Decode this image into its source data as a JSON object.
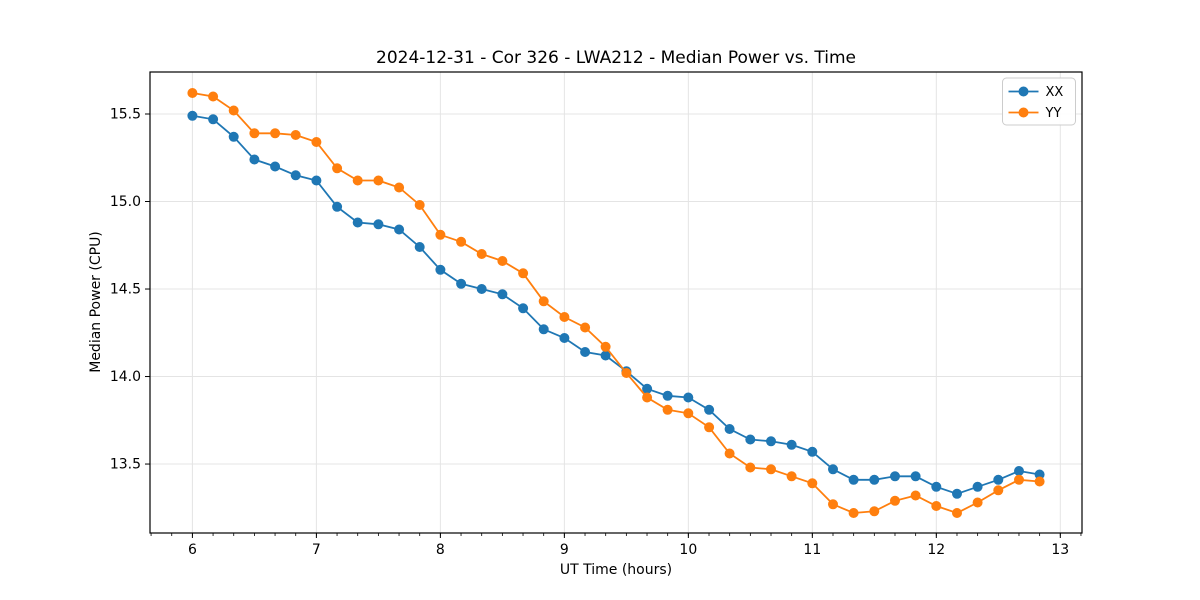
{
  "figure": {
    "background_color": "#ffffff",
    "plot_background_color": "#ffffff",
    "spine_color": "#000000",
    "grid_color": "#e4e4e4"
  },
  "chart_data": {
    "type": "line",
    "title": "2024-12-31 - Cor 326 - LWA212 - Median Power vs. Time",
    "xlabel": "UT Time (hours)",
    "ylabel": "Median Power (CPU)",
    "xlim": [
      5.658,
      13.175
    ],
    "ylim": [
      13.106,
      15.74
    ],
    "xticks": [
      6,
      7,
      8,
      9,
      10,
      11,
      12,
      13
    ],
    "xtick_labels": [
      "6",
      "7",
      "8",
      "9",
      "10",
      "11",
      "12",
      "13"
    ],
    "yticks": [
      13.5,
      14.0,
      14.5,
      15.0,
      15.5
    ],
    "ytick_labels": [
      "13.5",
      "14.0",
      "14.5",
      "15.0",
      "15.5"
    ],
    "x_minor_step": 0.1666667,
    "grid": true,
    "legend": {
      "location": "upper right"
    },
    "x": [
      6.0,
      6.167,
      6.333,
      6.5,
      6.667,
      6.833,
      7.0,
      7.167,
      7.333,
      7.5,
      7.667,
      7.833,
      8.0,
      8.167,
      8.333,
      8.5,
      8.667,
      8.833,
      9.0,
      9.167,
      9.333,
      9.5,
      9.667,
      9.833,
      10.0,
      10.167,
      10.333,
      10.5,
      10.667,
      10.833,
      11.0,
      11.167,
      11.333,
      11.5,
      11.667,
      11.833,
      12.0,
      12.167,
      12.333,
      12.5,
      12.667,
      12.833
    ],
    "series": [
      {
        "name": "XX",
        "color": "#1f77b4",
        "marker": "circle",
        "values": [
          15.49,
          15.47,
          15.37,
          15.24,
          15.2,
          15.15,
          15.12,
          14.97,
          14.88,
          14.87,
          14.84,
          14.74,
          14.61,
          14.53,
          14.5,
          14.47,
          14.39,
          14.27,
          14.22,
          14.14,
          14.12,
          14.03,
          13.93,
          13.89,
          13.88,
          13.81,
          13.7,
          13.64,
          13.63,
          13.61,
          13.57,
          13.47,
          13.41,
          13.41,
          13.43,
          13.43,
          13.37,
          13.33,
          13.37,
          13.41,
          13.46,
          13.44
        ]
      },
      {
        "name": "YY",
        "color": "#ff7f0e",
        "marker": "circle",
        "values": [
          15.62,
          15.6,
          15.52,
          15.39,
          15.39,
          15.38,
          15.34,
          15.19,
          15.12,
          15.12,
          15.08,
          14.98,
          14.81,
          14.77,
          14.7,
          14.66,
          14.59,
          14.43,
          14.34,
          14.28,
          14.17,
          14.02,
          13.88,
          13.81,
          13.79,
          13.71,
          13.56,
          13.48,
          13.47,
          13.43,
          13.39,
          13.27,
          13.22,
          13.23,
          13.29,
          13.32,
          13.26,
          13.22,
          13.28,
          13.35,
          13.41,
          13.4
        ]
      }
    ]
  }
}
